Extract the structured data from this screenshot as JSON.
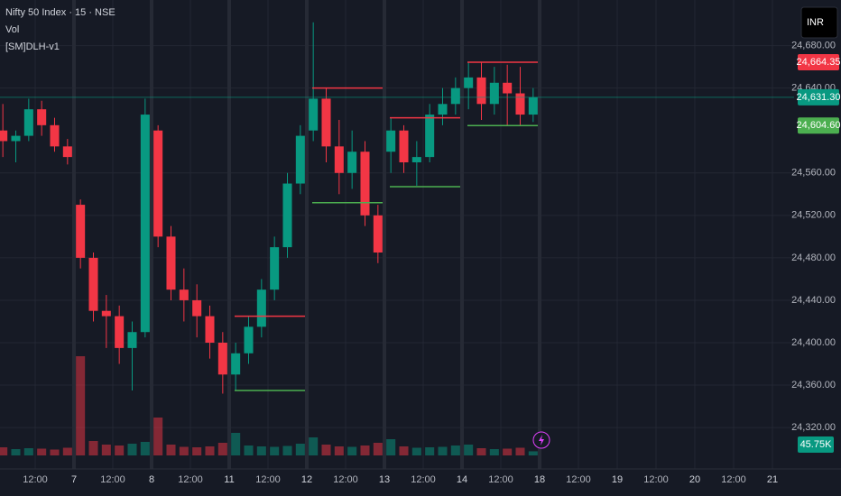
{
  "chart_data": {
    "type": "candlestick",
    "legend": [
      "Nifty 50 Index · 15 · NSE",
      "Vol",
      "[SM]DLH-v1"
    ],
    "currency": "INR",
    "up_color": "#089981",
    "down_color": "#f23645",
    "ylim": [
      24281,
      24723
    ],
    "yticks": [
      {
        "value": 24320,
        "label": "24,320.00"
      },
      {
        "value": 24360,
        "label": "24,360.00"
      },
      {
        "value": 24400,
        "label": "24,400.00"
      },
      {
        "value": 24440,
        "label": "24,440.00"
      },
      {
        "value": 24480,
        "label": "24,480.00"
      },
      {
        "value": 24520,
        "label": "24,520.00"
      },
      {
        "value": 24560,
        "label": "24,560.00"
      },
      {
        "value": 24640,
        "label": "24,640.00"
      },
      {
        "value": 24680,
        "label": "24,680.00"
      }
    ],
    "grid": true,
    "x_labels": [
      "12:00",
      "7",
      "12:00",
      "8",
      "12:00",
      "11",
      "12:00",
      "12",
      "12:00",
      "13",
      "12:00",
      "14",
      "12:00",
      "18",
      "12:00",
      "19",
      "12:00",
      "20",
      "12:00",
      "21"
    ],
    "ohlc": [
      [
        24600,
        24625,
        24575,
        24590
      ],
      [
        24590,
        24600,
        24570,
        24595
      ],
      [
        24595,
        24630,
        24590,
        24620
      ],
      [
        24620,
        24628,
        24595,
        24605
      ],
      [
        24605,
        24612,
        24580,
        24585
      ],
      [
        24585,
        24592,
        24568,
        24575
      ],
      [
        24530,
        24535,
        24470,
        24480
      ],
      [
        24480,
        24485,
        24420,
        24430
      ],
      [
        24430,
        24445,
        24395,
        24425
      ],
      [
        24425,
        24435,
        24380,
        24395
      ],
      [
        24395,
        24420,
        24355,
        24410
      ],
      [
        24410,
        24630,
        24405,
        24615
      ],
      [
        24600,
        24605,
        24490,
        24500
      ],
      [
        24500,
        24510,
        24440,
        24450
      ],
      [
        24450,
        24470,
        24420,
        24440
      ],
      [
        24440,
        24455,
        24405,
        24425
      ],
      [
        24425,
        24435,
        24385,
        24400
      ],
      [
        24400,
        24410,
        24352,
        24370
      ],
      [
        24370,
        24400,
        24355,
        24390
      ],
      [
        24390,
        24425,
        24380,
        24415
      ],
      [
        24415,
        24460,
        24405,
        24450
      ],
      [
        24450,
        24500,
        24440,
        24490
      ],
      [
        24490,
        24560,
        24480,
        24550
      ],
      [
        24550,
        24605,
        24540,
        24595
      ],
      [
        24600,
        24702,
        24590,
        24630
      ],
      [
        24630,
        24640,
        24570,
        24585
      ],
      [
        24585,
        24610,
        24540,
        24560
      ],
      [
        24560,
        24600,
        24545,
        24580
      ],
      [
        24580,
        24590,
        24510,
        24520
      ],
      [
        24520,
        24530,
        24475,
        24485
      ],
      [
        24580,
        24612,
        24560,
        24600
      ],
      [
        24600,
        24605,
        24560,
        24570
      ],
      [
        24570,
        24590,
        24548,
        24575
      ],
      [
        24575,
        24625,
        24570,
        24615
      ],
      [
        24615,
        24640,
        24605,
        24625
      ],
      [
        24625,
        24650,
        24615,
        24640
      ],
      [
        24640,
        24664,
        24620,
        24650
      ],
      [
        24650,
        24664,
        24610,
        24625
      ],
      [
        24625,
        24660,
        24615,
        24645
      ],
      [
        24645,
        24662,
        24605,
        24635
      ],
      [
        24635,
        24660,
        24604,
        24615
      ],
      [
        24615,
        24640,
        24608,
        24631.3
      ]
    ],
    "volume": {
      "values": [
        90,
        70,
        80,
        75,
        65,
        85,
        1100,
        160,
        120,
        110,
        130,
        150,
        420,
        120,
        95,
        90,
        100,
        140,
        250,
        110,
        100,
        95,
        105,
        130,
        200,
        120,
        100,
        95,
        110,
        140,
        180,
        100,
        85,
        90,
        95,
        110,
        120,
        80,
        70,
        75,
        85,
        45.75
      ],
      "value_labels": [
        null,
        null,
        null,
        null,
        null,
        null,
        null,
        null,
        null,
        null,
        null,
        null,
        null,
        null,
        null,
        null,
        null,
        null,
        null,
        null,
        null,
        null,
        null,
        null,
        null,
        null,
        null,
        null,
        null,
        null,
        null,
        null,
        null,
        null,
        null,
        null,
        null,
        null,
        null,
        null,
        null,
        "45.75K"
      ]
    },
    "levels": {
      "high": {
        "color": "#f23645",
        "values": [
          null,
          null,
          null,
          24425,
          24640,
          24612,
          24664.35
        ],
        "value_labels": [
          null,
          null,
          null,
          null,
          null,
          null,
          "24,664.35"
        ]
      },
      "low": {
        "color": "#4caf50",
        "values": [
          null,
          null,
          null,
          24355,
          24532,
          24547,
          24604.6
        ],
        "value_labels": [
          null,
          null,
          null,
          null,
          null,
          null,
          "24,604.60"
        ]
      }
    },
    "last_price": {
      "value": 24631.3,
      "label": "24,631.30"
    }
  }
}
